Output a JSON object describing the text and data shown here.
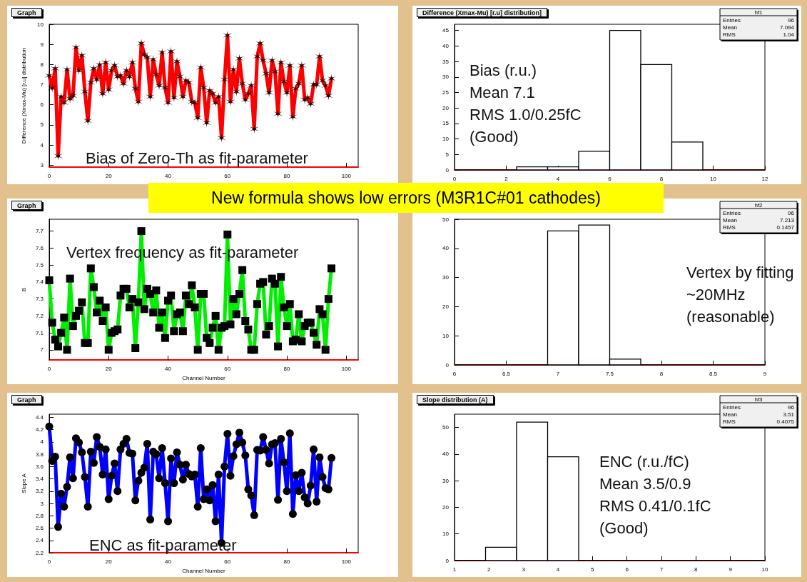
{
  "chart_data": [
    {
      "type": "line",
      "title": "Graph",
      "ylabel": "Difference (Xmax-Mu) [r.u] distribution",
      "annotations": [
        "Bias of Zero-Th as fit-parameter"
      ],
      "marker": "cross",
      "line_style": "solid",
      "xlim": [
        0,
        104
      ],
      "xticks": [
        0,
        20,
        40,
        60,
        80,
        100
      ],
      "ylim": [
        2.9,
        10
      ],
      "yticks": [
        3,
        4,
        5,
        6,
        7,
        8,
        9,
        10
      ],
      "x": [
        0,
        1,
        2,
        3,
        4,
        5,
        6,
        7,
        8,
        9,
        10,
        11,
        12,
        13,
        14,
        15,
        16,
        17,
        18,
        19,
        20,
        21,
        22,
        23,
        24,
        25,
        26,
        27,
        28,
        29,
        30,
        31,
        32,
        33,
        34,
        35,
        36,
        37,
        38,
        39,
        40,
        41,
        42,
        43,
        44,
        45,
        46,
        47,
        48,
        49,
        50,
        51,
        52,
        53,
        54,
        55,
        56,
        57,
        58,
        59,
        60,
        61,
        62,
        63,
        64,
        65,
        66,
        67,
        68,
        69,
        70,
        71,
        72,
        73,
        74,
        75,
        76,
        77,
        78,
        79,
        80,
        81,
        82,
        83,
        84,
        85,
        86,
        87,
        88,
        89,
        90,
        91,
        92,
        93,
        94,
        95
      ],
      "series": [
        {
          "color": "#ff0000",
          "values": [
            7.45,
            6.83,
            7.8,
            3.45,
            6.4,
            6.1,
            7.75,
            6.3,
            6.45,
            8.85,
            7.7,
            8.45,
            6.65,
            5.2,
            7.1,
            7.8,
            7.25,
            7.98,
            6.55,
            8.1,
            6.75,
            7.7,
            7.95,
            7.4,
            7.45,
            7.05,
            7.7,
            7.4,
            8.1,
            6.8,
            6.15,
            9.05,
            8.5,
            8.35,
            6.4,
            8.25,
            7.5,
            6.95,
            8.6,
            6.85,
            6.1,
            8.65,
            6.35,
            8.15,
            7.4,
            6.4,
            7.2,
            7.1,
            6.15,
            6.1,
            5.35,
            7.85,
            6.85,
            5.1,
            6.7,
            6.55,
            6.1,
            6.4,
            4.35,
            7.25,
            9.45,
            6.15,
            7.75,
            6.65,
            8.3,
            7.05,
            6.25,
            6.55,
            6.95,
            4.8,
            8.4,
            9.05,
            8.2,
            7.55,
            6.6,
            8.2,
            7.65,
            5.55,
            8.1,
            7.15,
            6.6,
            7.95,
            5.4,
            6.8,
            7.05,
            7.95,
            6.25,
            6.35,
            6.05,
            7.0,
            7.0,
            8.4,
            7.2,
            6.95,
            6.45,
            7.3
          ]
        }
      ]
    },
    {
      "type": "histogram",
      "title": "Difference (Xmax-Mu) [r.u] distribution]",
      "annotations": [
        "hf1",
        "Entries 96",
        "Mean 7.094",
        "RMS 1.04",
        "Bias (r.u.)",
        "Mean 7.1",
        "RMS 1.0/0.25fC",
        "(Good)"
      ],
      "bins": [
        0,
        1.2,
        2.4,
        3.6,
        4.8,
        6,
        7.2,
        8.4,
        9.6,
        10.8,
        12
      ],
      "values": [
        0,
        0,
        1,
        1,
        6,
        45,
        34,
        9,
        0,
        0
      ],
      "xlim": [
        0,
        12
      ],
      "xticks": [
        0,
        2,
        4,
        6,
        8,
        10,
        12
      ],
      "ylim": [
        0,
        47
      ],
      "yticks": [
        0,
        5,
        10,
        15,
        20,
        25,
        30,
        35,
        40,
        45
      ]
    },
    {
      "type": "line",
      "title": "Graph",
      "ylabel": "B",
      "xlabel": "Channel Number",
      "annotations": [
        "Vertex frequency as fit-parameter",
        "New formula shows low errors (M3R1C#01 cathodes)"
      ],
      "marker": "square",
      "line_style": "solid",
      "xlim": [
        0,
        104
      ],
      "xticks": [
        0,
        20,
        40,
        60,
        80,
        100
      ],
      "ylim": [
        6.94,
        7.77
      ],
      "yticks": [
        7,
        7.1,
        7.2,
        7.3,
        7.4,
        7.5,
        7.6,
        7.7
      ],
      "x": [
        0,
        1,
        2,
        3,
        4,
        5,
        6,
        7,
        8,
        9,
        10,
        11,
        12,
        13,
        14,
        15,
        16,
        17,
        18,
        19,
        20,
        21,
        22,
        23,
        24,
        25,
        26,
        27,
        28,
        29,
        30,
        31,
        32,
        33,
        34,
        35,
        36,
        37,
        38,
        39,
        40,
        41,
        42,
        43,
        44,
        45,
        46,
        47,
        48,
        49,
        50,
        51,
        52,
        53,
        54,
        55,
        56,
        57,
        58,
        59,
        60,
        61,
        62,
        63,
        64,
        65,
        66,
        67,
        68,
        69,
        70,
        71,
        72,
        73,
        74,
        75,
        76,
        77,
        78,
        79,
        80,
        81,
        82,
        83,
        84,
        85,
        86,
        87,
        88,
        89,
        90,
        91,
        92,
        93,
        94,
        95
      ],
      "series": [
        {
          "color": "#00ee00",
          "values": [
            7.41,
            7.16,
            7.06,
            7.02,
            7.1,
            7.19,
            7.0,
            7.42,
            7.14,
            7.2,
            7.23,
            7.28,
            7.04,
            7.04,
            7.48,
            7.37,
            7.22,
            7.29,
            7.17,
            7.25,
            7.0,
            7.1,
            7.11,
            7.12,
            7.32,
            7.36,
            7.36,
            7.25,
            7.3,
            7.01,
            7.28,
            7.7,
            7.24,
            7.36,
            7.33,
            7.22,
            7.35,
            7.13,
            7.22,
            7.07,
            7.29,
            7.32,
            7.11,
            7.21,
            7.22,
            7.11,
            7.32,
            7.27,
            7.38,
            7.25,
            7.0,
            7.33,
            7.33,
            7.07,
            7.04,
            7.13,
            7.2,
            7.0,
            7.13,
            7.14,
            7.68,
            7.15,
            7.3,
            7.21,
            7.33,
            7.47,
            7.17,
            7.12,
            7.0,
            7.0,
            7.27,
            7.39,
            7.4,
            7.09,
            7.14,
            7.42,
            7.39,
            7.02,
            7.43,
            7.25,
            7.14,
            7.27,
            7.05,
            7.06,
            7.21,
            7.05,
            7.14,
            7.16,
            7.16,
            7.1,
            7.03,
            7.24,
            7.21,
            7.0,
            7.3,
            7.48
          ]
        }
      ]
    },
    {
      "type": "histogram",
      "annotations": [
        "hf2",
        "Entries 96",
        "Mean 7.213",
        "RMS 0.1457",
        "Vertex by fitting",
        "~20MHz",
        "(reasonable)"
      ],
      "bins": [
        6,
        6.3,
        6.6,
        6.9,
        7.2,
        7.5,
        7.8,
        8.1,
        8.4,
        8.7,
        9
      ],
      "values": [
        0,
        0,
        0,
        46,
        48,
        2,
        0,
        0,
        0,
        0
      ],
      "xlim": [
        6,
        9
      ],
      "xticks": [
        6,
        6.5,
        7,
        7.5,
        8,
        8.5,
        9
      ],
      "ylim": [
        0,
        50
      ],
      "yticks": [
        0,
        10,
        20,
        30,
        40,
        50
      ]
    },
    {
      "type": "line",
      "title": "Graph",
      "ylabel": "Slope A",
      "xlabel": "Channel Number",
      "annotations": [
        "ENC as fit-parameter"
      ],
      "marker": "circle",
      "line_style": "solid",
      "xlim": [
        0,
        104
      ],
      "xticks": [
        0,
        20,
        40,
        60,
        80,
        100
      ],
      "ylim": [
        2.2,
        4.45
      ],
      "yticks": [
        2.2,
        2.4,
        2.6,
        2.8,
        3,
        3.2,
        3.4,
        3.6,
        3.8,
        4,
        4.2,
        4.4
      ],
      "x": [
        0,
        1,
        2,
        3,
        4,
        5,
        6,
        7,
        8,
        9,
        10,
        11,
        12,
        13,
        14,
        15,
        16,
        17,
        18,
        19,
        20,
        21,
        22,
        23,
        24,
        25,
        26,
        27,
        28,
        29,
        30,
        31,
        32,
        33,
        34,
        35,
        36,
        37,
        38,
        39,
        40,
        41,
        42,
        43,
        44,
        45,
        46,
        47,
        48,
        49,
        50,
        51,
        52,
        53,
        54,
        55,
        56,
        57,
        58,
        59,
        60,
        61,
        62,
        63,
        64,
        65,
        66,
        67,
        68,
        69,
        70,
        71,
        72,
        73,
        74,
        75,
        76,
        77,
        78,
        79,
        80,
        81,
        82,
        83,
        84,
        85,
        86,
        87,
        88,
        89,
        90,
        91,
        92,
        93,
        94,
        95
      ],
      "series": [
        {
          "color": "#0000ff",
          "values": [
            4.25,
            3.69,
            3.76,
            2.62,
            3.16,
            2.95,
            3.27,
            3.75,
            3.41,
            4.06,
            3.99,
            3.83,
            3.43,
            2.95,
            3.84,
            3.66,
            4.08,
            3.92,
            3.47,
            3.88,
            3.07,
            3.45,
            3.65,
            3.2,
            3.88,
            3.97,
            4.05,
            3.82,
            3.81,
            3.05,
            3.37,
            3.5,
            3.58,
            3.97,
            2.74,
            3.84,
            3.8,
            3.41,
            3.9,
            3.33,
            2.71,
            3.73,
            3.33,
            3.83,
            3.63,
            3.39,
            3.63,
            3.48,
            3.44,
            3.47,
            2.95,
            3.9,
            3.07,
            3.23,
            3.05,
            3.3,
            2.71,
            3.47,
            2.36,
            3.6,
            4.13,
            3.45,
            3.77,
            3.96,
            4.15,
            3.99,
            3.78,
            3.23,
            3.13,
            2.81,
            3.87,
            3.86,
            4.08,
            3.87,
            3.65,
            3.96,
            3.98,
            3.06,
            4.05,
            3.67,
            3.2,
            4.14,
            2.83,
            3.46,
            3.2,
            3.5,
            3.1,
            3.0,
            3.29,
            3.88,
            3.03,
            3.75,
            3.43,
            3.25,
            3.23,
            3.74
          ]
        }
      ]
    },
    {
      "type": "histogram",
      "title": "Slope distribution (A)",
      "annotations": [
        "hf3",
        "Entries 96",
        "Mean 3.51",
        "RMS 0.4075",
        "ENC (r.u./fC)",
        "Mean 3.5/0.9",
        "RMS 0.41/0.1fC",
        "(Good)"
      ],
      "bins": [
        1,
        1.9,
        2.8,
        3.7,
        4.6,
        5.5,
        6.4,
        7.3,
        8.2,
        9.1,
        10
      ],
      "values": [
        0,
        5,
        52,
        39,
        0,
        0,
        0,
        0,
        0,
        0
      ],
      "xlim": [
        1,
        10
      ],
      "xticks": [
        1,
        2,
        3,
        4,
        5,
        6,
        7,
        8,
        9,
        10
      ],
      "ylim": [
        0,
        55
      ],
      "yticks": [
        0,
        10,
        20,
        30,
        40,
        50
      ]
    }
  ]
}
